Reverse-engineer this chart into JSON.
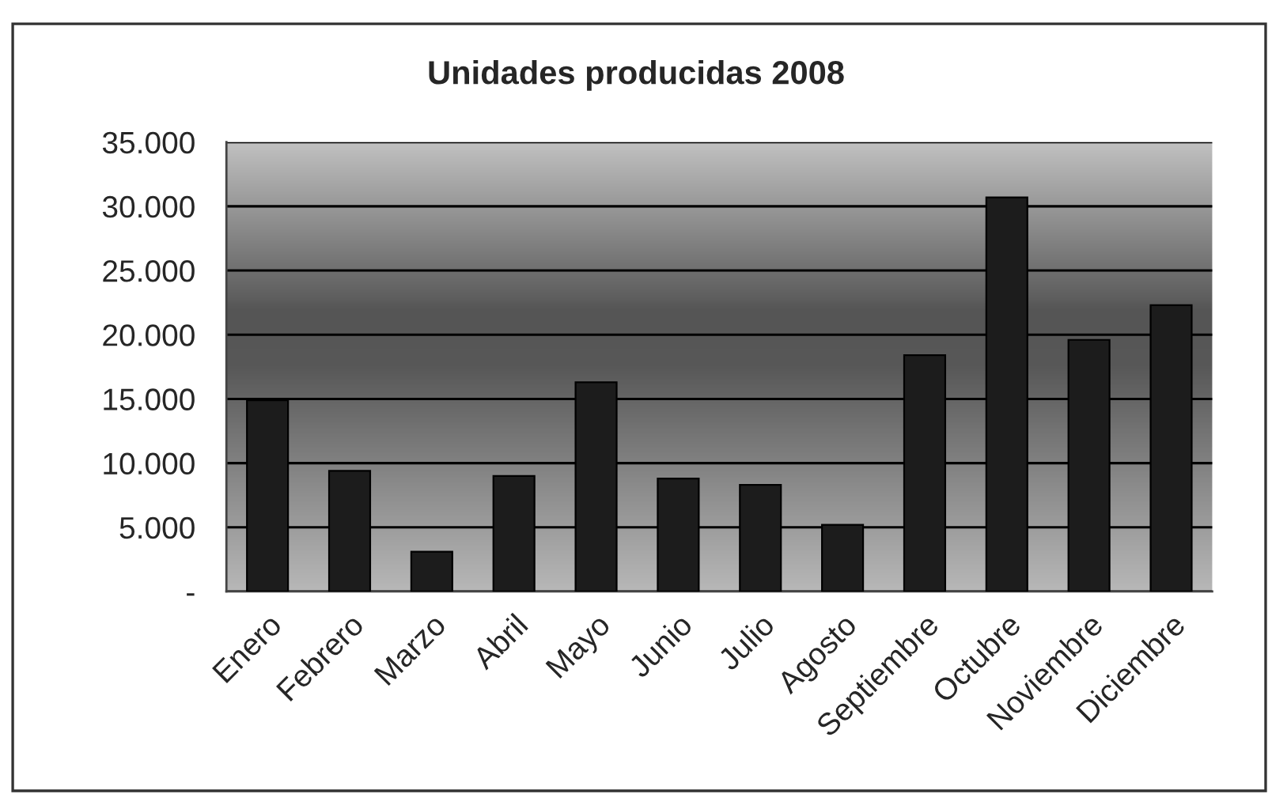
{
  "chart_data": {
    "type": "bar",
    "title": "Unidades producidas 2008",
    "categories": [
      "Enero",
      "Febrero",
      "Marzo",
      "Abril",
      "Mayo",
      "Junio",
      "Julio",
      "Agosto",
      "Septiembre",
      "Octubre",
      "Noviembre",
      "Diciembre"
    ],
    "values": [
      14900,
      9400,
      3100,
      9000,
      16300,
      8800,
      8300,
      5200,
      18400,
      30700,
      19600,
      22300
    ],
    "color": "#1c1c1c",
    "ylim": [
      0,
      35000
    ],
    "yticks": [
      {
        "value": 0,
        "label": "-"
      },
      {
        "value": 5000,
        "label": "5.000"
      },
      {
        "value": 10000,
        "label": "10.000"
      },
      {
        "value": 15000,
        "label": "15.000"
      },
      {
        "value": 20000,
        "label": "20.000"
      },
      {
        "value": 25000,
        "label": "25.000"
      },
      {
        "value": 30000,
        "label": "30.000"
      },
      {
        "value": 35000,
        "label": "35.000"
      }
    ],
    "grid": "y"
  }
}
